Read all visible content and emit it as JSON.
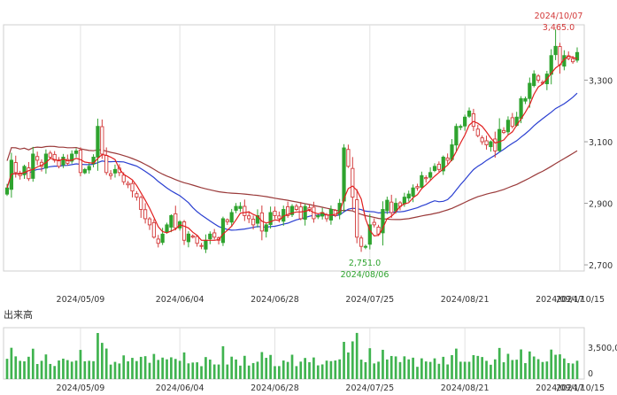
{
  "chart_data": [
    {
      "type": "candlestick",
      "title": "",
      "x_ticks": [
        "2024/05/09",
        "2024/06/04",
        "2024/06/28",
        "2024/07/25",
        "2024/08/21",
        "2024/09/17",
        "2024/10/15"
      ],
      "y_ticks": [
        3300,
        3100,
        2900,
        2700
      ],
      "y_tick_labels": [
        "3,300",
        "3,100",
        "2,900",
        "2,700"
      ],
      "ylim": [
        2680,
        3480
      ],
      "grid": "vertical",
      "colors": {
        "up": "#2ea32e",
        "down": "#d33a3a",
        "ma_short": "#e11f1f",
        "ma_mid": "#2a3fd1",
        "ma_long": "#9a3a3a"
      },
      "annotations": {
        "high": {
          "date": "2024/10/07",
          "value": "3,465.0"
        },
        "low": {
          "date": "2024/08/06",
          "value": "2,751.0"
        }
      },
      "close": [
        2950,
        3040,
        3000,
        2990,
        3020,
        2980,
        3060,
        3040,
        3020,
        3060,
        3050,
        3040,
        3020,
        3050,
        3030,
        3060,
        3070,
        3000,
        3010,
        3020,
        3050,
        3150,
        3060,
        3000,
        2990,
        3010,
        3000,
        2970,
        2960,
        2940,
        2920,
        2880,
        2850,
        2830,
        2790,
        2770,
        2800,
        2830,
        2860,
        2820,
        2840,
        2780,
        2800,
        2790,
        2770,
        2760,
        2780,
        2800,
        2790,
        2780,
        2850,
        2840,
        2870,
        2890,
        2890,
        2860,
        2850,
        2830,
        2860,
        2810,
        2830,
        2870,
        2860,
        2850,
        2880,
        2860,
        2890,
        2880,
        2850,
        2890,
        2880,
        2850,
        2860,
        2870,
        2850,
        2880,
        2860,
        2900,
        3080,
        3020,
        2920,
        2790,
        2760,
        2760,
        2830,
        2830,
        2800,
        2880,
        2910,
        2870,
        2900,
        2890,
        2920,
        2930,
        2950,
        2950,
        2990,
        2980,
        3000,
        3020,
        3010,
        3050,
        3040,
        3090,
        3150,
        3150,
        3180,
        3200,
        3150,
        3120,
        3100,
        3090,
        3100,
        3070,
        3140,
        3130,
        3170,
        3150,
        3180,
        3240,
        3240,
        3290,
        3320,
        3300,
        3290,
        3320,
        3380,
        3410,
        3350,
        3380,
        3370,
        3360,
        3390
      ],
      "volume_title": "出来高",
      "volume_ticks": [
        "3,500,0",
        "0"
      ]
    }
  ]
}
